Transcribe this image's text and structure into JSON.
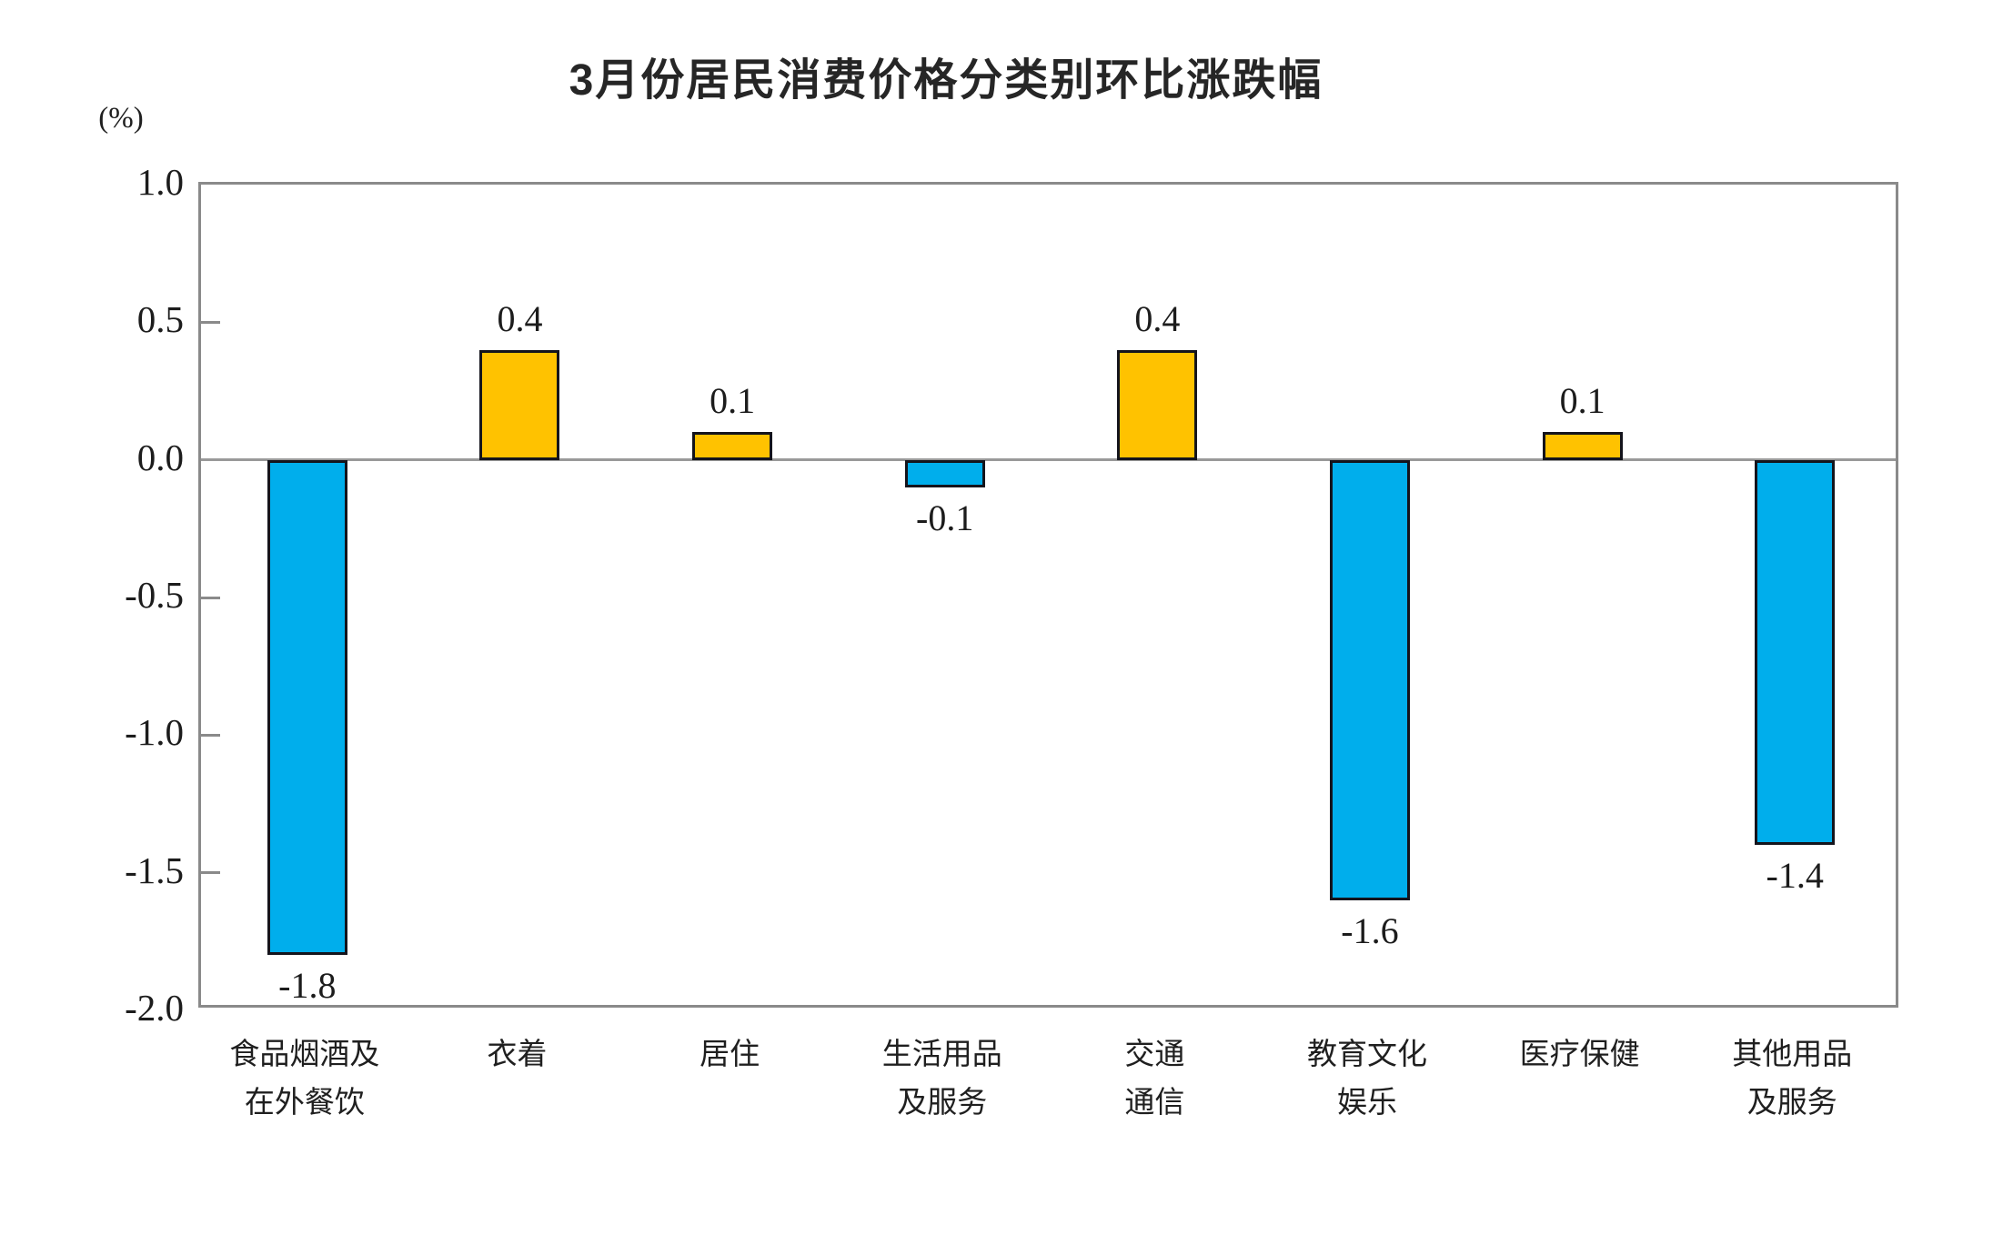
{
  "title": "3月份居民消费价格分类别环比涨跌幅",
  "axis": {
    "unit_label": "(%)",
    "yticks": [
      "1.0",
      "0.5",
      "0.0",
      "-0.5",
      "-1.0",
      "-1.5",
      "-2.0"
    ]
  },
  "colors": {
    "positive_bar": "#FFC200",
    "negative_bar": "#00AEEC",
    "bar_border": "#14141C",
    "axis_frame": "#8A8A8A",
    "zero_line": "#999999",
    "text": "#1C1C1C"
  },
  "chart_data": {
    "type": "bar",
    "title": "3月份居民消费价格分类别环比涨跌幅",
    "categories": [
      "食品烟酒及\n在外餐饮",
      "衣着",
      "居住",
      "生活用品\n及服务",
      "交通\n通信",
      "教育文化\n娱乐",
      "医疗保健",
      "其他用品\n及服务"
    ],
    "values": [
      -1.8,
      0.4,
      0.1,
      -0.1,
      0.4,
      -1.6,
      0.1,
      -1.4
    ],
    "data_labels": [
      "-1.8",
      "0.4",
      "0.1",
      "-0.1",
      "0.4",
      "-1.6",
      "0.1",
      "-1.4"
    ],
    "xlabel": "",
    "ylabel": "(%)",
    "ylim": [
      -2.0,
      1.0
    ],
    "ytick_interval": 0.5,
    "ytick_labels": [
      "1.0",
      "0.5",
      "0.0",
      "-0.5",
      "-1.0",
      "-1.5",
      "-2.0"
    ],
    "grid": false,
    "zero_line": true,
    "legend": "none",
    "positive_color": "#FFC200",
    "negative_color": "#00AEEC"
  }
}
